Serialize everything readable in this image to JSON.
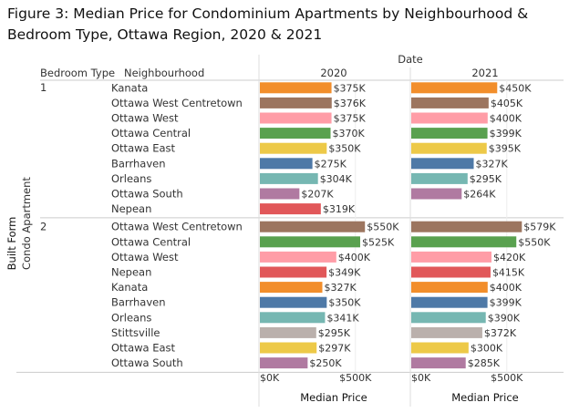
{
  "figure": {
    "title": "Figure 3: Median Price for Condominium Apartments by Neighbourhood & Bedroom Type, Ottawa Region, 2020 & 2021"
  },
  "chart_data": {
    "type": "bar",
    "orientation": "horizontal",
    "title": "Figure 3: Median Price for Condominium Apartments by Neighbourhood & Bedroom Type, Ottawa Region, 2020 & 2021",
    "column_header": "Date",
    "row_headers": [
      "Bedroom Type",
      "Neighbourhood"
    ],
    "outer_row_label": "Built Form",
    "outer_row_value": "Condo Apartment",
    "xlabel": "Median Price",
    "xlim": [
      0,
      640
    ],
    "x_ticks": [
      {
        "value": 0,
        "label": "$0K"
      },
      {
        "value": 500,
        "label": "$500K"
      }
    ],
    "colors": {
      "Kanata": "#F28E2B",
      "Ottawa West Centretown": "#9C755F",
      "Ottawa West": "#FF9DA7",
      "Ottawa Central": "#59A14F",
      "Ottawa East": "#EDC948",
      "Barrhaven": "#4E79A7",
      "Orleans": "#76B7B2",
      "Ottawa South": "#B07AA1",
      "Nepean": "#E15759",
      "Stittsville": "#BAB0AC"
    },
    "panels": [
      "2020",
      "2021"
    ],
    "groups": [
      {
        "bedroom": "1",
        "rows": [
          {
            "neighbourhood": "Kanata",
            "values": [
              375,
              450
            ],
            "labels": [
              "$375K",
              "$450K"
            ]
          },
          {
            "neighbourhood": "Ottawa West Centretown",
            "values": [
              376,
              405
            ],
            "labels": [
              "$376K",
              "$405K"
            ]
          },
          {
            "neighbourhood": "Ottawa West",
            "values": [
              375,
              400
            ],
            "labels": [
              "$375K",
              "$400K"
            ]
          },
          {
            "neighbourhood": "Ottawa Central",
            "values": [
              370,
              399
            ],
            "labels": [
              "$370K",
              "$399K"
            ]
          },
          {
            "neighbourhood": "Ottawa East",
            "values": [
              350,
              395
            ],
            "labels": [
              "$350K",
              "$395K"
            ]
          },
          {
            "neighbourhood": "Barrhaven",
            "values": [
              275,
              327
            ],
            "labels": [
              "$275K",
              "$327K"
            ]
          },
          {
            "neighbourhood": "Orleans",
            "values": [
              304,
              295
            ],
            "labels": [
              "$304K",
              "$295K"
            ]
          },
          {
            "neighbourhood": "Ottawa South",
            "values": [
              207,
              264
            ],
            "labels": [
              "$207K",
              "$264K"
            ]
          },
          {
            "neighbourhood": "Nepean",
            "values": [
              319,
              null
            ],
            "labels": [
              "$319K",
              ""
            ]
          }
        ]
      },
      {
        "bedroom": "2",
        "rows": [
          {
            "neighbourhood": "Ottawa West Centretown",
            "values": [
              550,
              579
            ],
            "labels": [
              "$550K",
              "$579K"
            ]
          },
          {
            "neighbourhood": "Ottawa Central",
            "values": [
              525,
              550
            ],
            "labels": [
              "$525K",
              "$550K"
            ]
          },
          {
            "neighbourhood": "Ottawa West",
            "values": [
              400,
              420
            ],
            "labels": [
              "$400K",
              "$420K"
            ]
          },
          {
            "neighbourhood": "Nepean",
            "values": [
              349,
              415
            ],
            "labels": [
              "$349K",
              "$415K"
            ]
          },
          {
            "neighbourhood": "Kanata",
            "values": [
              327,
              400
            ],
            "labels": [
              "$327K",
              "$400K"
            ]
          },
          {
            "neighbourhood": "Barrhaven",
            "values": [
              350,
              399
            ],
            "labels": [
              "$350K",
              "$399K"
            ]
          },
          {
            "neighbourhood": "Orleans",
            "values": [
              341,
              390
            ],
            "labels": [
              "$341K",
              "$390K"
            ]
          },
          {
            "neighbourhood": "Stittsville",
            "values": [
              295,
              372
            ],
            "labels": [
              "$295K",
              "$372K"
            ]
          },
          {
            "neighbourhood": "Ottawa East",
            "values": [
              297,
              300
            ],
            "labels": [
              "$297K",
              "$300K"
            ]
          },
          {
            "neighbourhood": "Ottawa South",
            "values": [
              250,
              285
            ],
            "labels": [
              "$250K",
              "$285K"
            ]
          }
        ]
      }
    ]
  }
}
